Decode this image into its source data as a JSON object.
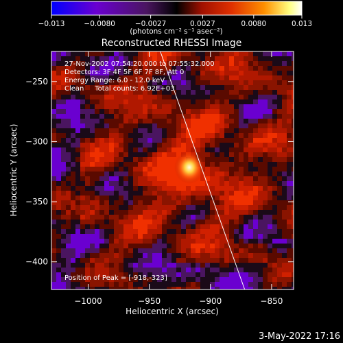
{
  "colorbar": {
    "ticks": [
      "−0.013",
      "−0.0080",
      "−0.0027",
      "0.0027",
      "0.0080",
      "0.013"
    ],
    "units_label": "(photons cm⁻² s⁻¹ asec⁻²)",
    "range": [
      -0.013,
      0.013
    ]
  },
  "annotations": {
    "time": "27-Nov-2002 07:54:20.000 to 07:55:32.000",
    "detectors": "Detectors: 3F 4F 5F 6F 7F 8F, Att 0",
    "energy": "Energy Range: 6.0 - 12.0 keV",
    "method": "Clean     Total counts: 6.92E+03",
    "peak": "Position of Peak = [-918,-323]"
  },
  "footer": {
    "date": "3-May-2022 17:16"
  },
  "chart_data": {
    "type": "heatmap",
    "title": "Reconstructed RHESSI Image",
    "xlabel": "Heliocentric X (arcsec)",
    "ylabel": "Heliocentric Y (arcsec)",
    "xlim": [
      -1030,
      -832
    ],
    "ylim": [
      -423,
      -225
    ],
    "x_ticks": [
      -1000,
      -950,
      -900,
      -850
    ],
    "x_tick_labels": [
      "−1000",
      "−950",
      "−900",
      "−850"
    ],
    "y_ticks": [
      -250,
      -300,
      -350,
      -400
    ],
    "y_tick_labels": [
      "−250",
      "−300",
      "−350",
      "−400"
    ],
    "peak": {
      "x": -918,
      "y": -323
    },
    "limb_line": [
      [
        -941,
        -225
      ],
      [
        -872,
        -423
      ]
    ],
    "colormap": [
      "#0000ff",
      "#6a00d0",
      "#4a1560",
      "#000000",
      "#a01000",
      "#e03000",
      "#ff9000",
      "#ffff80",
      "#ffffff"
    ]
  }
}
